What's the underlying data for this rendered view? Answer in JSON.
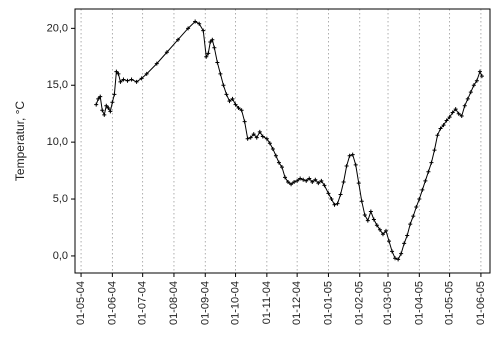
{
  "chart_data": {
    "type": "line",
    "ylabel": "Temperatur, °C",
    "ylim": [
      -1.5,
      21.7
    ],
    "y_ticks": [
      {
        "value": 0,
        "label": "0,0"
      },
      {
        "value": 5,
        "label": "5,0"
      },
      {
        "value": 10,
        "label": "10,0"
      },
      {
        "value": 15,
        "label": "15,0"
      },
      {
        "value": 20,
        "label": "20,0"
      }
    ],
    "x_ticks": [
      {
        "value": "2004-05-01",
        "label": "01-05-04"
      },
      {
        "value": "2004-06-01",
        "label": "01-06-04"
      },
      {
        "value": "2004-07-01",
        "label": "01-07-04"
      },
      {
        "value": "2004-08-01",
        "label": "01-08-04"
      },
      {
        "value": "2004-09-01",
        "label": "01-09-04"
      },
      {
        "value": "2004-10-01",
        "label": "01-10-04"
      },
      {
        "value": "2004-11-01",
        "label": "01-11-04"
      },
      {
        "value": "2004-12-01",
        "label": "01-12-04"
      },
      {
        "value": "2005-01-01",
        "label": "01-01-05"
      },
      {
        "value": "2005-02-01",
        "label": "01-02-05"
      },
      {
        "value": "2005-03-01",
        "label": "01-03-05"
      },
      {
        "value": "2005-04-01",
        "label": "01-04-05"
      },
      {
        "value": "2005-05-01",
        "label": "01-05-05"
      },
      {
        "value": "2005-06-01",
        "label": "01-06-05"
      }
    ],
    "xlim": [
      "2004-04-25",
      "2005-06-10"
    ],
    "grid": "vertical dotted at x ticks",
    "series": [
      {
        "marker": "plus",
        "color": "#000000",
        "points": [
          [
            "2004-05-16",
            13.3
          ],
          [
            "2004-05-18",
            13.8
          ],
          [
            "2004-05-20",
            14.0
          ],
          [
            "2004-05-22",
            12.8
          ],
          [
            "2004-05-24",
            12.4
          ],
          [
            "2004-05-26",
            13.2
          ],
          [
            "2004-05-28",
            13.0
          ],
          [
            "2004-05-30",
            12.7
          ],
          [
            "2004-06-01",
            13.5
          ],
          [
            "2004-06-03",
            14.2
          ],
          [
            "2004-06-05",
            16.2
          ],
          [
            "2004-06-07",
            16.0
          ],
          [
            "2004-06-09",
            15.3
          ],
          [
            "2004-06-12",
            15.5
          ],
          [
            "2004-06-16",
            15.4
          ],
          [
            "2004-06-20",
            15.5
          ],
          [
            "2004-06-25",
            15.3
          ],
          [
            "2004-06-30",
            15.6
          ],
          [
            "2004-07-05",
            16.0
          ],
          [
            "2004-07-15",
            16.9
          ],
          [
            "2004-07-25",
            17.9
          ],
          [
            "2004-08-05",
            19.0
          ],
          [
            "2004-08-15",
            20.0
          ],
          [
            "2004-08-22",
            20.6
          ],
          [
            "2004-08-26",
            20.4
          ],
          [
            "2004-08-30",
            19.8
          ],
          [
            "2004-09-02",
            17.5
          ],
          [
            "2004-09-04",
            17.8
          ],
          [
            "2004-09-06",
            18.8
          ],
          [
            "2004-09-08",
            19.0
          ],
          [
            "2004-09-10",
            18.3
          ],
          [
            "2004-09-13",
            17.0
          ],
          [
            "2004-09-16",
            16.0
          ],
          [
            "2004-09-19",
            15.0
          ],
          [
            "2004-09-22",
            14.2
          ],
          [
            "2004-09-25",
            13.6
          ],
          [
            "2004-09-28",
            13.8
          ],
          [
            "2004-10-01",
            13.3
          ],
          [
            "2004-10-04",
            13.0
          ],
          [
            "2004-10-07",
            12.8
          ],
          [
            "2004-10-10",
            11.8
          ],
          [
            "2004-10-13",
            10.3
          ],
          [
            "2004-10-16",
            10.4
          ],
          [
            "2004-10-19",
            10.7
          ],
          [
            "2004-10-22",
            10.4
          ],
          [
            "2004-10-25",
            10.9
          ],
          [
            "2004-10-28",
            10.5
          ],
          [
            "2004-11-01",
            10.3
          ],
          [
            "2004-11-04",
            9.9
          ],
          [
            "2004-11-07",
            9.4
          ],
          [
            "2004-11-10",
            8.8
          ],
          [
            "2004-11-13",
            8.2
          ],
          [
            "2004-11-16",
            7.8
          ],
          [
            "2004-11-19",
            6.9
          ],
          [
            "2004-11-22",
            6.5
          ],
          [
            "2004-11-25",
            6.3
          ],
          [
            "2004-11-28",
            6.5
          ],
          [
            "2004-12-01",
            6.6
          ],
          [
            "2004-12-04",
            6.8
          ],
          [
            "2004-12-07",
            6.7
          ],
          [
            "2004-12-10",
            6.6
          ],
          [
            "2004-12-13",
            6.8
          ],
          [
            "2004-12-16",
            6.5
          ],
          [
            "2004-12-19",
            6.7
          ],
          [
            "2004-12-22",
            6.4
          ],
          [
            "2004-12-25",
            6.6
          ],
          [
            "2004-12-28",
            6.2
          ],
          [
            "2005-01-01",
            5.5
          ],
          [
            "2005-01-04",
            5.0
          ],
          [
            "2005-01-07",
            4.5
          ],
          [
            "2005-01-10",
            4.6
          ],
          [
            "2005-01-13",
            5.4
          ],
          [
            "2005-01-16",
            6.5
          ],
          [
            "2005-01-19",
            7.9
          ],
          [
            "2005-01-22",
            8.8
          ],
          [
            "2005-01-25",
            8.9
          ],
          [
            "2005-01-28",
            8.0
          ],
          [
            "2005-01-31",
            6.4
          ],
          [
            "2005-02-03",
            4.8
          ],
          [
            "2005-02-06",
            3.6
          ],
          [
            "2005-02-09",
            3.1
          ],
          [
            "2005-02-12",
            3.9
          ],
          [
            "2005-02-15",
            3.2
          ],
          [
            "2005-02-18",
            2.7
          ],
          [
            "2005-02-21",
            2.3
          ],
          [
            "2005-02-24",
            1.9
          ],
          [
            "2005-02-27",
            2.2
          ],
          [
            "2005-03-02",
            1.3
          ],
          [
            "2005-03-05",
            0.4
          ],
          [
            "2005-03-08",
            -0.2
          ],
          [
            "2005-03-11",
            -0.3
          ],
          [
            "2005-03-14",
            0.2
          ],
          [
            "2005-03-17",
            1.1
          ],
          [
            "2005-03-20",
            1.8
          ],
          [
            "2005-03-23",
            2.8
          ],
          [
            "2005-03-26",
            3.5
          ],
          [
            "2005-03-29",
            4.3
          ],
          [
            "2005-04-01",
            5.0
          ],
          [
            "2005-04-04",
            5.8
          ],
          [
            "2005-04-07",
            6.6
          ],
          [
            "2005-04-10",
            7.4
          ],
          [
            "2005-04-13",
            8.2
          ],
          [
            "2005-04-16",
            9.3
          ],
          [
            "2005-04-19",
            10.6
          ],
          [
            "2005-04-22",
            11.2
          ],
          [
            "2005-04-25",
            11.5
          ],
          [
            "2005-04-28",
            11.9
          ],
          [
            "2005-05-01",
            12.2
          ],
          [
            "2005-05-04",
            12.6
          ],
          [
            "2005-05-07",
            12.9
          ],
          [
            "2005-05-10",
            12.5
          ],
          [
            "2005-05-13",
            12.3
          ],
          [
            "2005-05-16",
            13.2
          ],
          [
            "2005-05-19",
            13.8
          ],
          [
            "2005-05-22",
            14.4
          ],
          [
            "2005-05-25",
            15.0
          ],
          [
            "2005-05-28",
            15.4
          ],
          [
            "2005-05-31",
            16.2
          ],
          [
            "2005-06-02",
            15.8
          ]
        ]
      }
    ]
  }
}
